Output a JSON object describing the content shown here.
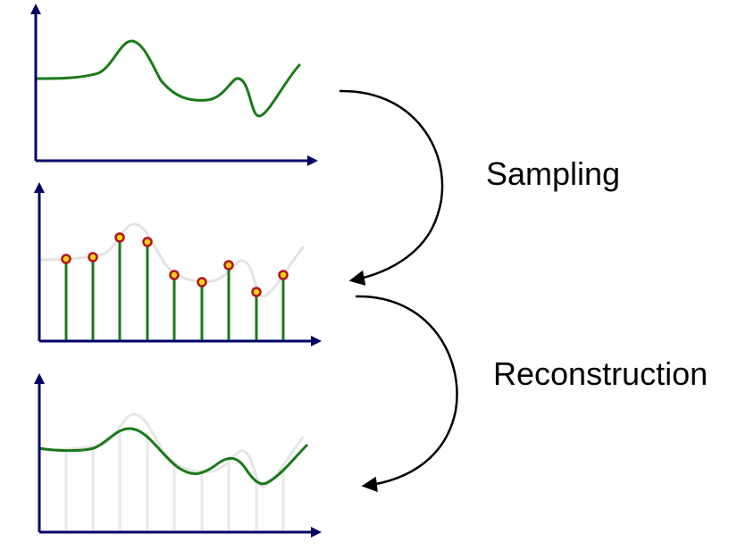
{
  "steps": {
    "sampling": "Sampling",
    "reconstruction": "Reconstruction"
  },
  "colors": {
    "axis": "#000066",
    "signal": "#1a7a1a",
    "faded_signal": "#e3e3e3",
    "sample_fill": "#ffd21a",
    "sample_stroke": "#b0161a",
    "arrow": "#000000"
  },
  "icons": {
    "axis_head": "triangle-arrowhead",
    "process_arrow": "curved-arrow"
  }
}
